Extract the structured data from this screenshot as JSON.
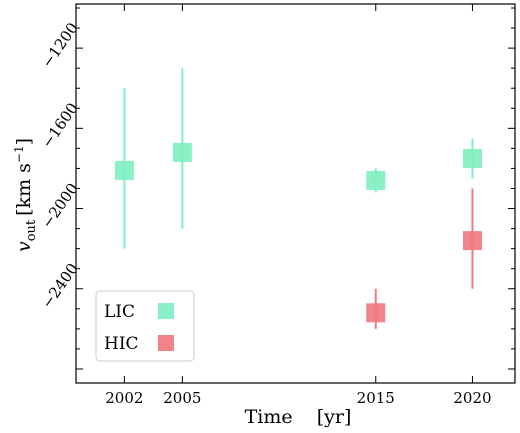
{
  "chart_data": {
    "type": "scatter",
    "xlabel": "Time    [yr]",
    "ylabel_main": "v",
    "ylabel_sub": "out",
    "ylabel_unit": "[km s",
    "ylabel_sup": "−1",
    "ylabel_close": "]",
    "xlim": [
      1999.5,
      2022.2
    ],
    "ylim": [
      -2870,
      -980
    ],
    "x_ticks": [
      2002,
      2005,
      2015,
      2020
    ],
    "x_tick_labels": [
      "2002",
      "2005",
      "2015",
      "2020"
    ],
    "y_ticks": [
      -1200,
      -1600,
      -2000,
      -2400
    ],
    "y_tick_labels": [
      "−1200",
      "−1600",
      "−2000",
      "−2400"
    ],
    "grid": false,
    "legend_position": "lower-left",
    "series": [
      {
        "name": "LIC",
        "color": "#7ff0c0",
        "points": [
          {
            "x": 2002,
            "y": -1810,
            "yerr_low": -2200,
            "yerr_high": -1400
          },
          {
            "x": 2005,
            "y": -1720,
            "yerr_low": -2100,
            "yerr_high": -1300
          },
          {
            "x": 2015,
            "y": -1860,
            "yerr_low": -1920,
            "yerr_high": -1800
          },
          {
            "x": 2020,
            "y": -1750,
            "yerr_low": -1850,
            "yerr_high": -1650
          }
        ]
      },
      {
        "name": "HIC",
        "color": "#f07880",
        "points": [
          {
            "x": 2015,
            "y": -2520,
            "yerr_low": -2600,
            "yerr_high": -2400
          },
          {
            "x": 2020,
            "y": -2160,
            "yerr_low": -2400,
            "yerr_high": -1900
          }
        ]
      }
    ]
  }
}
